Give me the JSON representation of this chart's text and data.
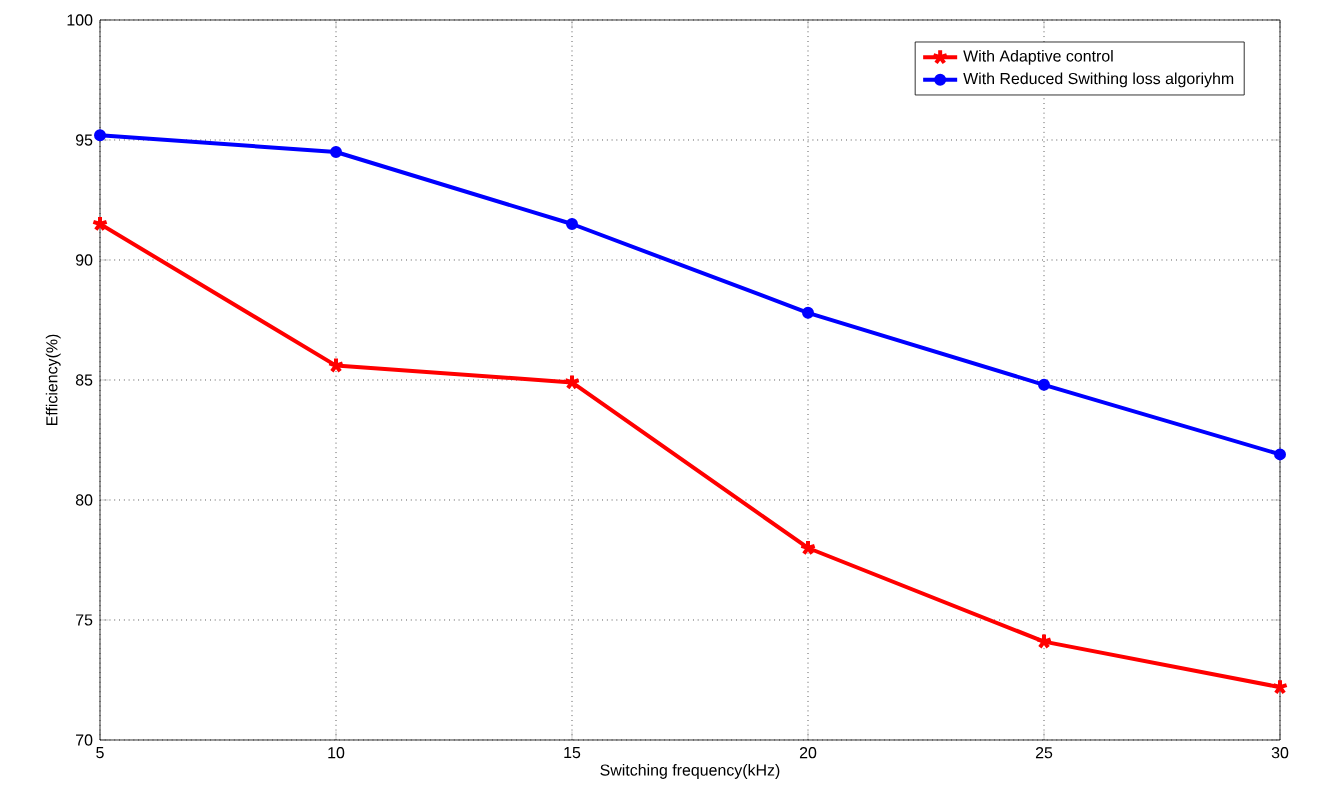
{
  "chart_data": {
    "type": "line",
    "xlabel": "Switching frequency(kHz)",
    "ylabel": "Efficiency(%)",
    "x": [
      5,
      10,
      15,
      20,
      25,
      30
    ],
    "series": [
      {
        "name": "With Adaptive control",
        "color": "#ff0000",
        "marker": "cross",
        "values": [
          91.5,
          85.6,
          84.9,
          78.0,
          74.1,
          72.2
        ]
      },
      {
        "name": "With Reduced Swithing loss algoriyhm",
        "color": "#0000ff",
        "marker": "circle",
        "values": [
          95.2,
          94.5,
          91.5,
          87.8,
          84.8,
          81.9
        ]
      }
    ],
    "xlim": [
      5,
      30
    ],
    "ylim": [
      70,
      100
    ],
    "xticks": [
      5,
      10,
      15,
      20,
      25,
      30
    ],
    "yticks": [
      70,
      75,
      80,
      85,
      90,
      95,
      100
    ],
    "grid": true,
    "legend": "top right",
    "line_style": "solid"
  }
}
